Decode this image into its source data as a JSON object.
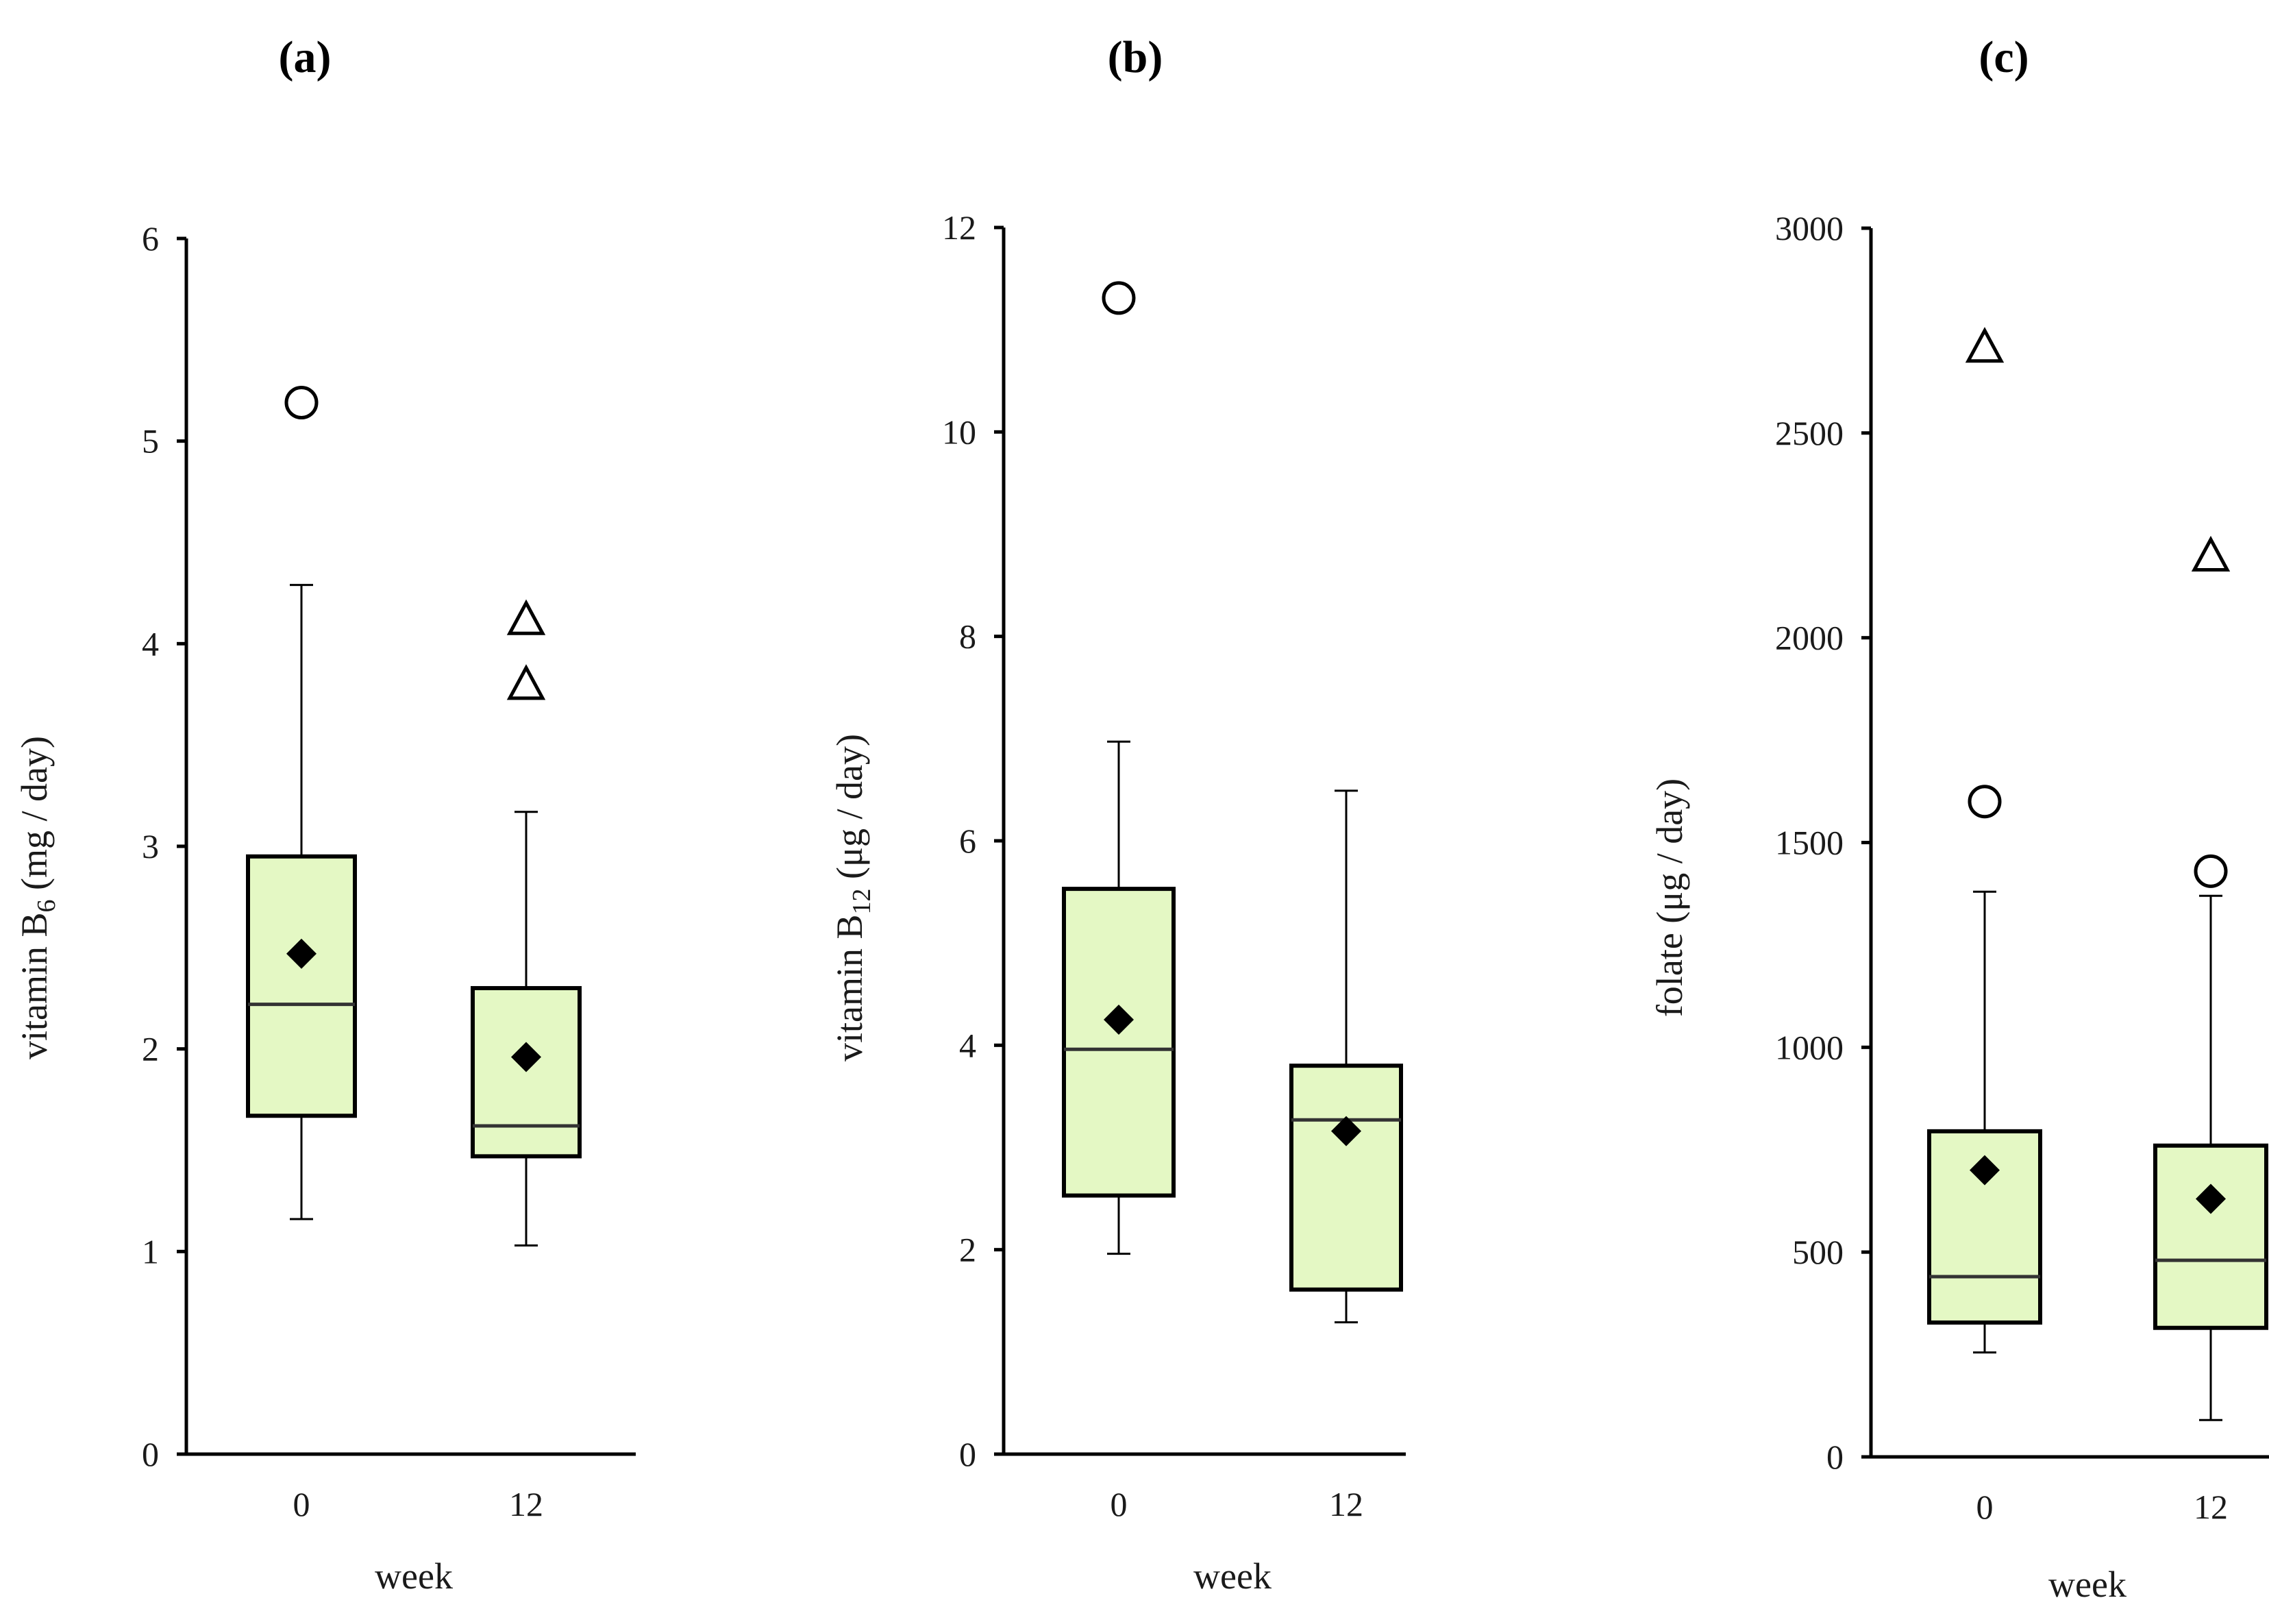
{
  "chart_data": [
    {
      "type": "box",
      "title": "(a)",
      "xlabel": "week",
      "ylabel": {
        "prefix": "vitamin B",
        "sub": "6",
        "suffix": " (mg / day)"
      },
      "ylim": [
        0,
        6
      ],
      "yticks": [
        0,
        1,
        2,
        3,
        4,
        5,
        6
      ],
      "box_color": "#e4f8c4",
      "groups": [
        {
          "category": "0",
          "q1": 1.67,
          "median": 2.22,
          "q3": 2.95,
          "whisker_low": 1.16,
          "whisker_high": 4.29,
          "mean": 2.47,
          "outliers_circle": [
            5.19
          ],
          "outliers_triangle": []
        },
        {
          "category": "12",
          "q1": 1.47,
          "median": 1.62,
          "q3": 2.3,
          "whisker_low": 1.03,
          "whisker_high": 3.17,
          "mean": 1.96,
          "outliers_circle": [],
          "outliers_triangle": [
            4.12,
            3.8
          ]
        }
      ]
    },
    {
      "type": "box",
      "title": "(b)",
      "xlabel": "week",
      "ylabel": {
        "prefix": "vitamin B",
        "sub": "12",
        "suffix": " (μg / day)"
      },
      "ylim": [
        0,
        12
      ],
      "yticks": [
        0,
        2,
        4,
        6,
        8,
        10,
        12
      ],
      "box_color": "#e4f8c4",
      "groups": [
        {
          "category": "0",
          "q1": 2.53,
          "median": 3.96,
          "q3": 5.53,
          "whisker_low": 1.96,
          "whisker_high": 6.97,
          "mean": 4.25,
          "outliers_circle": [
            11.31
          ],
          "outliers_triangle": []
        },
        {
          "category": "12",
          "q1": 1.61,
          "median": 3.27,
          "q3": 3.8,
          "whisker_low": 1.29,
          "whisker_high": 6.49,
          "mean": 3.16,
          "outliers_circle": [],
          "outliers_triangle": []
        }
      ]
    },
    {
      "type": "box",
      "title": "(c)",
      "xlabel": "week",
      "ylabel": {
        "prefix": "folate",
        "sub": "",
        "suffix": " (μg / day)"
      },
      "ylim": [
        0,
        3000
      ],
      "yticks": [
        0,
        500,
        1000,
        1500,
        2000,
        2500,
        3000
      ],
      "box_color": "#e4f8c4",
      "groups": [
        {
          "category": "0",
          "q1": 328,
          "median": 440,
          "q3": 795,
          "whisker_low": 255,
          "whisker_high": 1380,
          "mean": 700,
          "outliers_circle": [
            1600
          ],
          "outliers_triangle": [
            2710
          ]
        },
        {
          "category": "12",
          "q1": 315,
          "median": 480,
          "q3": 760,
          "whisker_low": 90,
          "whisker_high": 1370,
          "mean": 630,
          "outliers_circle": [
            1430
          ],
          "outliers_triangle": [
            2200
          ]
        }
      ]
    }
  ]
}
